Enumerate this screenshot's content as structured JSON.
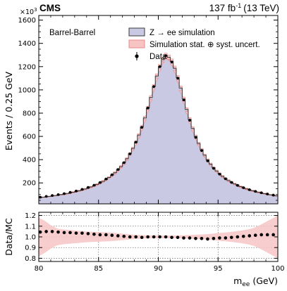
{
  "header": {
    "experiment": "CMS",
    "luminosity_label": "137 fb",
    "luminosity_exp": "-1",
    "energy_label": "(13 TeV)"
  },
  "category_label": "Barrel-Barrel",
  "colors": {
    "simulation_fill": "#c9c9e3",
    "simulation_line": "#3a3a3a",
    "uncertainty_fill": "#f7c4c4",
    "uncertainty_line": "#e88a8a",
    "data_marker": "#000000"
  },
  "chart_data": [
    {
      "type": "histogram",
      "panel": "main",
      "xlabel": "",
      "ylabel": "Events / 0.25 GeV",
      "y_multiplier": "×10",
      "y_multiplier_exp": "3",
      "xlim": [
        80,
        100
      ],
      "ylim": [
        20,
        1640
      ],
      "yticks": [
        200,
        400,
        600,
        800,
        1000,
        1200,
        1400,
        1600
      ],
      "ytick_labels": [
        "200",
        "400",
        "600",
        "800",
        "1000",
        "1200",
        "1400",
        "1600"
      ],
      "bin_width": 0.25,
      "peak_position": 90.75,
      "peak_value": 1220,
      "simulation_profile_params": {
        "form": "Breit–Wigner core with asymmetric radiative tail",
        "mass": 90.75,
        "core_width": 4.3,
        "low_tail_norm": 80,
        "high_tail_norm": 65,
        "low_tail_slope": 0.105,
        "high_tail_slope": 0.105
      },
      "series": [
        {
          "name": "Z → ee simulation"
        },
        {
          "name": "Simulation stat. ⊕ syst. uncert."
        },
        {
          "name": "Data"
        }
      ],
      "legend": {
        "placement": "top-right"
      }
    },
    {
      "type": "scatter",
      "panel": "ratio",
      "xlabel": "m",
      "xlabel_sub": "ee",
      "xlabel_unit": " (GeV)",
      "ylabel": "Data/MC",
      "xlim": [
        80,
        100
      ],
      "ylim": [
        0.77,
        1.23
      ],
      "xticks": [
        80,
        85,
        90,
        95,
        100
      ],
      "xtick_labels": [
        "80",
        "85",
        "90",
        "95",
        "100"
      ],
      "yticks": [
        0.8,
        0.9,
        1.0,
        1.1,
        1.2
      ],
      "ytick_labels": [
        "0.8",
        "0.9",
        "1.0",
        "1.1",
        "1.2"
      ],
      "grid": true,
      "points": {
        "x": [
          80.125,
          80.625,
          81.125,
          81.625,
          82.125,
          82.625,
          83.125,
          83.625,
          84.125,
          84.625,
          85.125,
          85.625,
          86.125,
          86.625,
          87.125,
          87.625,
          88.125,
          88.625,
          89.125,
          89.625,
          90.125,
          90.625,
          91.125,
          91.625,
          92.125,
          92.625,
          93.125,
          93.625,
          94.125,
          94.625,
          95.125,
          95.625,
          96.125,
          96.625,
          97.125,
          97.625,
          98.125,
          98.625,
          99.125,
          99.625
        ],
        "y": [
          1.045,
          1.05,
          1.05,
          1.045,
          1.04,
          1.04,
          1.035,
          1.035,
          1.03,
          1.025,
          1.02,
          1.02,
          1.015,
          1.01,
          1.005,
          1.0,
          1.0,
          0.995,
          1.0,
          1.0,
          1.0,
          1.0,
          0.995,
          0.995,
          0.99,
          0.99,
          0.985,
          0.985,
          0.98,
          0.985,
          0.99,
          0.99,
          0.995,
          1.0,
          1.005,
          1.01,
          1.015,
          1.02,
          1.02,
          1.02
        ]
      },
      "uncertainty_band": {
        "x": [
          80,
          80.5,
          81,
          81.5,
          82,
          83,
          84,
          85,
          86,
          87,
          88,
          89,
          90,
          91,
          92,
          93,
          94,
          95,
          96,
          97,
          97.5,
          98,
          98.5,
          99,
          99.5,
          100
        ],
        "half_width": [
          0.18,
          0.15,
          0.11,
          0.08,
          0.07,
          0.06,
          0.05,
          0.045,
          0.04,
          0.03,
          0.02,
          0.015,
          0.012,
          0.012,
          0.015,
          0.02,
          0.025,
          0.035,
          0.045,
          0.06,
          0.07,
          0.085,
          0.11,
          0.14,
          0.17,
          0.2
        ]
      }
    }
  ]
}
